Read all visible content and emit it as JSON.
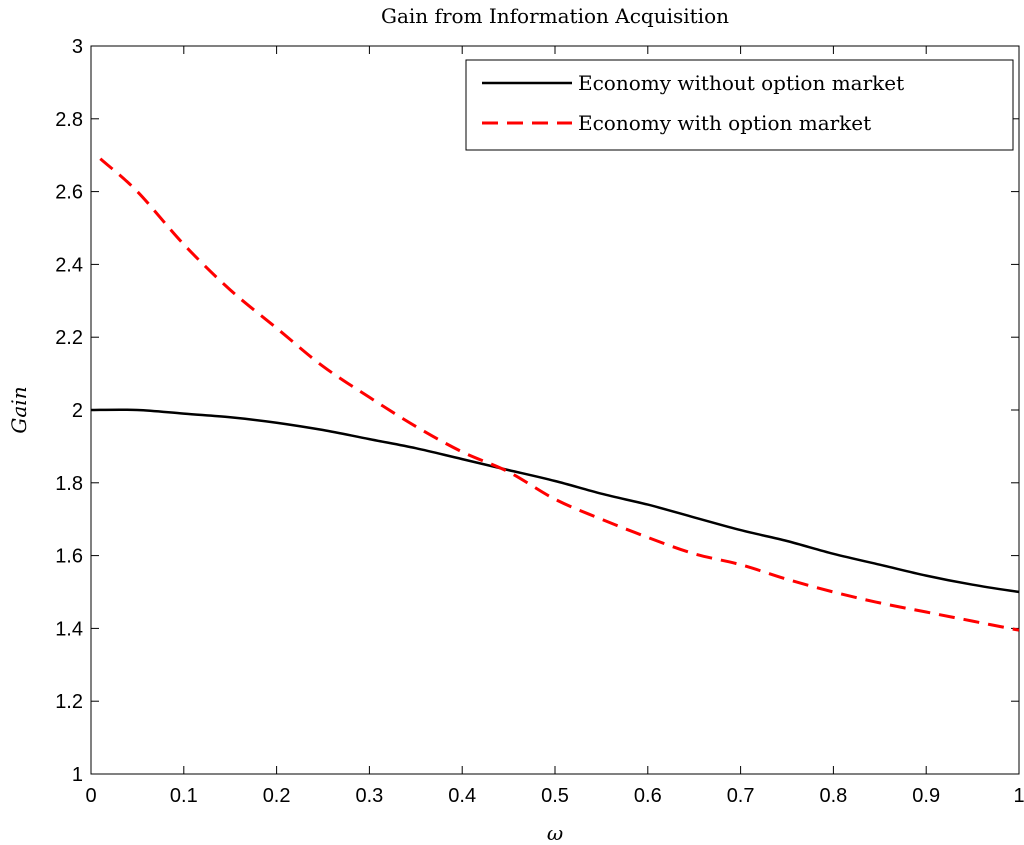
{
  "chart_data": {
    "type": "line",
    "title": "Gain from Information Acquisition",
    "xlabel": "ω",
    "ylabel": "Gain",
    "xlim": [
      0,
      1
    ],
    "ylim": [
      1,
      3
    ],
    "xticks": [
      0,
      0.1,
      0.2,
      0.3,
      0.4,
      0.5,
      0.6,
      0.7,
      0.8,
      0.9,
      1
    ],
    "xtick_labels": [
      "0",
      "0.1",
      "0.2",
      "0.3",
      "0.4",
      "0.5",
      "0.6",
      "0.7",
      "0.8",
      "0.9",
      "1"
    ],
    "yticks": [
      1,
      1.2,
      1.4,
      1.6,
      1.8,
      2,
      2.2,
      2.4,
      2.6,
      2.8,
      3
    ],
    "ytick_labels": [
      "1",
      "1.2",
      "1.4",
      "1.6",
      "1.8",
      "2",
      "2.2",
      "2.4",
      "2.6",
      "2.8",
      "3"
    ],
    "grid": false,
    "legend_position": "top-right",
    "series": [
      {
        "name": "Economy without option market",
        "color": "#000000",
        "style": "solid",
        "x": [
          0,
          0.05,
          0.1,
          0.15,
          0.2,
          0.25,
          0.3,
          0.35,
          0.4,
          0.45,
          0.5,
          0.55,
          0.6,
          0.65,
          0.7,
          0.75,
          0.8,
          0.85,
          0.9,
          0.95,
          1
        ],
        "y": [
          2.0,
          2.0,
          1.99,
          1.98,
          1.965,
          1.945,
          1.92,
          1.895,
          1.865,
          1.835,
          1.805,
          1.77,
          1.74,
          1.705,
          1.67,
          1.64,
          1.605,
          1.575,
          1.545,
          1.52,
          1.5
        ]
      },
      {
        "name": "Economy with option market",
        "color": "#ff0000",
        "style": "dashed",
        "x": [
          0.01,
          0.05,
          0.1,
          0.15,
          0.2,
          0.25,
          0.3,
          0.35,
          0.4,
          0.45,
          0.5,
          0.55,
          0.6,
          0.65,
          0.7,
          0.75,
          0.8,
          0.85,
          0.9,
          0.95,
          1
        ],
        "y": [
          2.69,
          2.6,
          2.455,
          2.33,
          2.225,
          2.12,
          2.035,
          1.955,
          1.885,
          1.83,
          1.755,
          1.7,
          1.65,
          1.605,
          1.575,
          1.535,
          1.5,
          1.47,
          1.445,
          1.42,
          1.395
        ]
      }
    ]
  }
}
